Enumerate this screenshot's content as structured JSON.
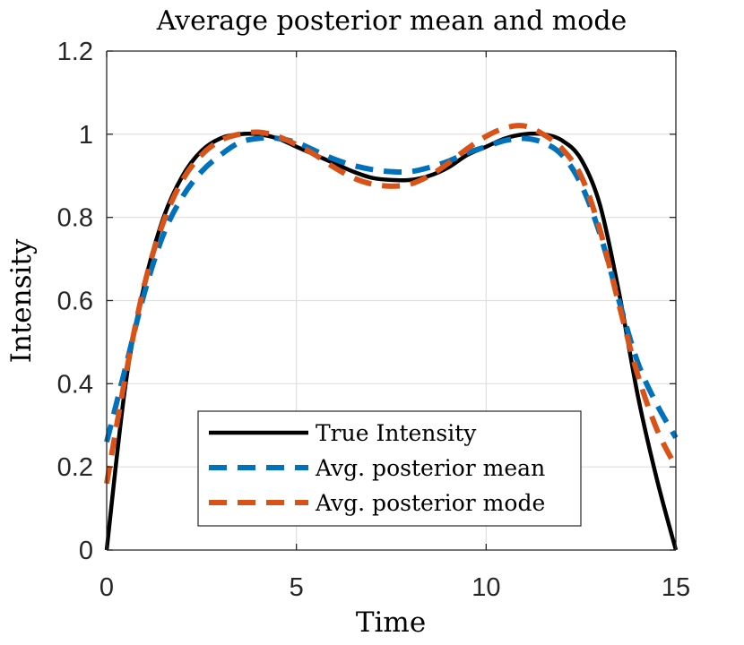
{
  "chart_data": {
    "type": "line",
    "title": "Average posterior mean and mode",
    "xlabel": "Time",
    "ylabel": "Intensity",
    "xlim": [
      0,
      15
    ],
    "ylim": [
      0,
      1.2
    ],
    "xticks": [
      0,
      5,
      10,
      15
    ],
    "xtick_labels": [
      "0",
      "5",
      "10",
      "15"
    ],
    "yticks": [
      0,
      0.2,
      0.4,
      0.6,
      0.8,
      1.0,
      1.2
    ],
    "ytick_labels": [
      "0",
      "0.2",
      "0.4",
      "0.6",
      "0.8",
      "1",
      "1.2"
    ],
    "grid": true,
    "legend_position": "bottom-center",
    "series": [
      {
        "name": "True Intensity",
        "color": "#000000",
        "style": "solid",
        "x": [
          0,
          0.5,
          1,
          1.5,
          2,
          2.5,
          3,
          3.5,
          4,
          4.5,
          5,
          5.5,
          6,
          6.5,
          7,
          7.5,
          8,
          8.5,
          9,
          9.5,
          10,
          10.5,
          11,
          11.5,
          12,
          12.5,
          13,
          13.5,
          14,
          14.5,
          15
        ],
        "y": [
          0,
          0.4,
          0.64,
          0.8,
          0.9,
          0.96,
          0.99,
          1.0,
          1.0,
          0.99,
          0.97,
          0.95,
          0.93,
          0.91,
          0.895,
          0.89,
          0.89,
          0.9,
          0.92,
          0.95,
          0.97,
          0.99,
          1.0,
          1.0,
          0.985,
          0.94,
          0.83,
          0.62,
          0.37,
          0.17,
          0
        ]
      },
      {
        "name": "Avg. posterior mean",
        "color": "#0072BD",
        "style": "dashed",
        "x": [
          0,
          0.5,
          1,
          1.5,
          2,
          2.5,
          3,
          3.5,
          4,
          4.5,
          5,
          5.5,
          6,
          6.5,
          7,
          7.5,
          8,
          8.5,
          9,
          9.5,
          10,
          10.5,
          11,
          11.5,
          12,
          12.5,
          13,
          13.5,
          14,
          14.5,
          15
        ],
        "y": [
          0.26,
          0.44,
          0.62,
          0.76,
          0.85,
          0.91,
          0.95,
          0.98,
          0.99,
          0.99,
          0.98,
          0.96,
          0.94,
          0.925,
          0.915,
          0.91,
          0.91,
          0.92,
          0.935,
          0.955,
          0.97,
          0.985,
          0.99,
          0.98,
          0.95,
          0.88,
          0.76,
          0.6,
          0.45,
          0.35,
          0.27
        ]
      },
      {
        "name": "Avg. posterior mode",
        "color": "#D95319",
        "style": "dashed",
        "x": [
          0,
          0.5,
          1,
          1.5,
          2,
          2.5,
          3,
          3.5,
          4,
          4.5,
          5,
          5.5,
          6,
          6.5,
          7,
          7.5,
          8,
          8.5,
          9,
          9.5,
          10,
          10.5,
          11,
          11.5,
          12,
          12.5,
          13,
          13.5,
          14,
          14.5,
          15
        ],
        "y": [
          0.16,
          0.42,
          0.64,
          0.79,
          0.89,
          0.95,
          0.985,
          1.0,
          1.005,
          0.995,
          0.975,
          0.95,
          0.92,
          0.895,
          0.88,
          0.875,
          0.88,
          0.9,
          0.93,
          0.965,
          0.995,
          1.015,
          1.02,
          1.0,
          0.965,
          0.9,
          0.77,
          0.59,
          0.42,
          0.29,
          0.2
        ]
      }
    ]
  }
}
